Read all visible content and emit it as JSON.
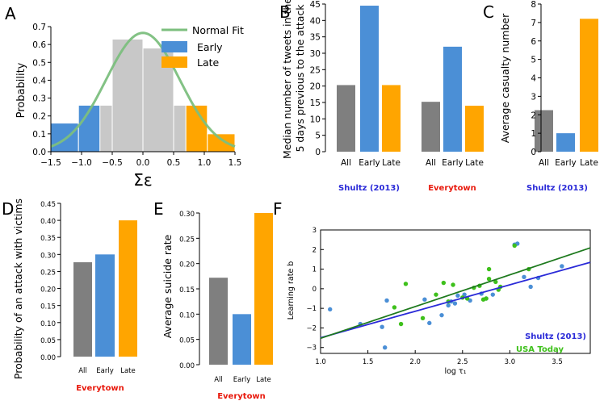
{
  "chart_data": [
    {
      "id": "A",
      "type": "histogram",
      "panel_label": "A",
      "xlabel": "Σε",
      "ylabel": "Probability",
      "xlim": [
        -1.5,
        1.5
      ],
      "ylim": [
        0,
        0.7
      ],
      "xticks": [
        -1.5,
        -1.0,
        -0.5,
        0.0,
        0.5,
        1.0,
        1.5
      ],
      "xtick_labels": [
        "−1.5",
        "−1.0",
        "−0.5",
        "0.0",
        "0.5",
        "1.0",
        "1.5"
      ],
      "yticks": [
        0.0,
        0.1,
        0.2,
        0.3,
        0.4,
        0.5,
        0.6,
        0.7
      ],
      "ytick_labels": [
        "0.0",
        "0.1",
        "0.2",
        "0.3",
        "0.4",
        "0.5",
        "0.6",
        "0.7"
      ],
      "bars": [
        {
          "x0": -1.5,
          "x1": -1.05,
          "value": 0.16,
          "group": "early"
        },
        {
          "x0": -1.05,
          "x1": -0.7,
          "value": 0.26,
          "group": "early"
        },
        {
          "x0": -0.7,
          "x1": -0.5,
          "value": 0.26,
          "group": "mid"
        },
        {
          "x0": -0.5,
          "x1": 0.0,
          "value": 0.63,
          "group": "mid"
        },
        {
          "x0": 0.0,
          "x1": 0.5,
          "value": 0.58,
          "group": "mid"
        },
        {
          "x0": 0.5,
          "x1": 0.7,
          "value": 0.26,
          "group": "mid"
        },
        {
          "x0": 0.7,
          "x1": 1.05,
          "value": 0.26,
          "group": "late"
        },
        {
          "x0": 1.05,
          "x1": 1.5,
          "value": 0.1,
          "group": "late"
        }
      ],
      "fit": {
        "name": "Normal Fit",
        "mean": 0.0,
        "sd": 0.6,
        "peak": 0.665
      },
      "legend": [
        {
          "label": "Normal Fit",
          "kind": "line",
          "color": "#7cbf7e"
        },
        {
          "label": "Early",
          "kind": "patch",
          "color": "#4b8fd6"
        },
        {
          "label": "Late",
          "kind": "patch",
          "color": "#ffa500"
        }
      ]
    },
    {
      "id": "B",
      "type": "bar",
      "panel_label": "B",
      "ylabel_lines": [
        "Median number of tweets in the",
        "5 days previous to the attack"
      ],
      "ylim": [
        0,
        45
      ],
      "yticks": [
        0,
        5,
        10,
        15,
        20,
        25,
        30,
        35,
        40,
        45
      ],
      "ytick_labels": [
        "0",
        "5",
        "10",
        "15",
        "20",
        "25",
        "30",
        "35",
        "40",
        "45"
      ],
      "categories": [
        "All",
        "Early",
        "Late",
        "All",
        "Early",
        "Late"
      ],
      "values": [
        20.3,
        44.5,
        20.3,
        15.2,
        32.0,
        14.0
      ],
      "groups": [
        {
          "label": "Shultz (2013)",
          "color": "#2a2ad8"
        },
        {
          "label": "Everytown",
          "color": "#e8190c"
        }
      ]
    },
    {
      "id": "C",
      "type": "bar",
      "panel_label": "C",
      "ylabel": "Average casualty number",
      "ylim": [
        0,
        8
      ],
      "yticks": [
        0,
        1,
        2,
        3,
        4,
        5,
        6,
        7,
        8
      ],
      "ytick_labels": [
        "0",
        "1",
        "2",
        "3",
        "4",
        "5",
        "6",
        "7",
        "8"
      ],
      "categories": [
        "All",
        "Early",
        "Late"
      ],
      "values": [
        2.25,
        1.0,
        7.2
      ],
      "caption": "Shultz (2013)",
      "caption_color": "#2a2ad8"
    },
    {
      "id": "D",
      "type": "bar",
      "panel_label": "D",
      "ylabel": "Probability of an attack with victims",
      "ylim": [
        0,
        0.45
      ],
      "yticks": [
        0.0,
        0.05,
        0.1,
        0.15,
        0.2,
        0.25,
        0.3,
        0.35,
        0.4,
        0.45
      ],
      "ytick_labels": [
        "0.00",
        "0.05",
        "0.10",
        "0.15",
        "0.20",
        "0.25",
        "0.30",
        "0.35",
        "0.40",
        "0.45"
      ],
      "categories": [
        "All",
        "Early",
        "Late"
      ],
      "values": [
        0.277,
        0.3,
        0.4
      ],
      "caption": "Everytown",
      "caption_color": "#e8190c"
    },
    {
      "id": "E",
      "type": "bar",
      "panel_label": "E",
      "ylabel": "Average suicide rate",
      "ylim": [
        0,
        0.3
      ],
      "yticks": [
        0.0,
        0.05,
        0.1,
        0.15,
        0.2,
        0.25,
        0.3
      ],
      "ytick_labels": [
        "0.00",
        "0.05",
        "0.10",
        "0.15",
        "0.20",
        "0.25",
        "0.30"
      ],
      "categories": [
        "All",
        "Early",
        "Late"
      ],
      "values": [
        0.172,
        0.1,
        0.3
      ],
      "caption": "Everytown",
      "caption_color": "#e8190c"
    },
    {
      "id": "F",
      "type": "scatter",
      "panel_label": "F",
      "xlabel": "log τ₁",
      "ylabel": "Learning rate b",
      "xlim": [
        1.0,
        3.85
      ],
      "ylim": [
        -3.3,
        3.0
      ],
      "xticks": [
        1.0,
        1.5,
        2.0,
        2.5,
        3.0,
        3.5
      ],
      "xtick_labels": [
        "1.0",
        "1.5",
        "2.0",
        "2.5",
        "3.0",
        "3.5"
      ],
      "yticks": [
        -3,
        -2,
        -1,
        0,
        1,
        2,
        3
      ],
      "ytick_labels": [
        "−3",
        "−2",
        "−1",
        "0",
        "1",
        "2",
        "3"
      ],
      "series": [
        {
          "name": "Shultz (2013)",
          "color": "#4b8fd6",
          "line_color": "#2a2ad8",
          "fit": {
            "slope": 1.35,
            "intercept": -3.85
          },
          "points": [
            [
              1.1,
              -1.05
            ],
            [
              1.42,
              -1.8
            ],
            [
              1.65,
              -1.95
            ],
            [
              1.7,
              -0.6
            ],
            [
              1.68,
              -3.0
            ],
            [
              2.1,
              -0.55
            ],
            [
              2.15,
              -1.75
            ],
            [
              2.28,
              -1.35
            ],
            [
              2.35,
              -0.85
            ],
            [
              2.38,
              -0.65
            ],
            [
              2.42,
              -0.75
            ],
            [
              2.45,
              -0.35
            ],
            [
              2.52,
              -0.3
            ],
            [
              2.58,
              -0.6
            ],
            [
              2.7,
              -0.25
            ],
            [
              2.75,
              -0.5
            ],
            [
              2.82,
              -0.3
            ],
            [
              3.05,
              2.25
            ],
            [
              3.08,
              2.3
            ],
            [
              3.15,
              0.6
            ],
            [
              3.22,
              0.1
            ],
            [
              3.3,
              0.55
            ],
            [
              3.55,
              1.15
            ]
          ]
        },
        {
          "name": "USA Today",
          "color": "#3ec01b",
          "line_color": "#1e7a1e",
          "fit": {
            "slope": 1.62,
            "intercept": -4.15
          },
          "points": [
            [
              1.78,
              -0.95
            ],
            [
              1.85,
              -1.8
            ],
            [
              1.9,
              0.25
            ],
            [
              2.08,
              -1.5
            ],
            [
              2.22,
              -0.3
            ],
            [
              2.3,
              0.3
            ],
            [
              2.35,
              -0.65
            ],
            [
              2.4,
              0.2
            ],
            [
              2.5,
              -0.45
            ],
            [
              2.55,
              -0.5
            ],
            [
              2.62,
              0.05
            ],
            [
              2.68,
              0.15
            ],
            [
              2.72,
              -0.55
            ],
            [
              2.75,
              -0.5
            ],
            [
              2.78,
              1.0
            ],
            [
              2.78,
              0.5
            ],
            [
              2.85,
              0.35
            ],
            [
              2.88,
              -0.05
            ],
            [
              2.9,
              0.1
            ],
            [
              3.05,
              2.2
            ],
            [
              3.2,
              1.0
            ]
          ]
        }
      ]
    }
  ],
  "colors": {
    "gray": "#7f7f7f",
    "blue": "#4b8fd6",
    "orange": "#ffa500",
    "lightgray": "#c8c8c8"
  }
}
